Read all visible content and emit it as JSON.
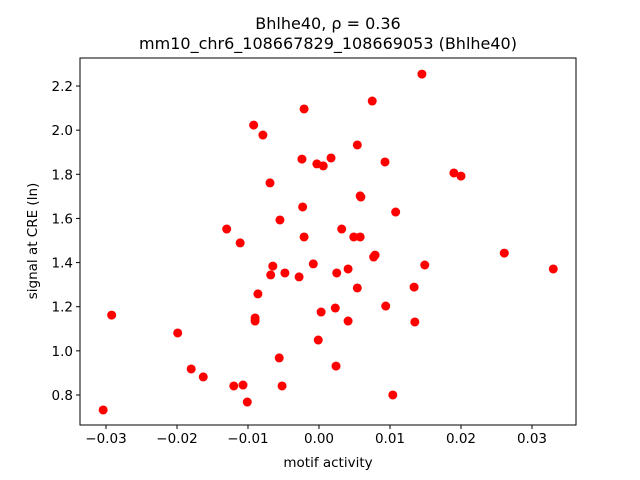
{
  "chart_data": {
    "type": "scatter",
    "title": "Bhlhe40, ρ = 0.36",
    "subtitle": "mm10_chr6_108667829_108669053 (Bhlhe40)",
    "x_label": "motif activity",
    "y_label": "signal at CRE (ln)",
    "color": "#ff0000",
    "x": [
      -0.0304,
      -0.0292,
      -0.0199,
      -0.018,
      -0.0163,
      -0.013,
      -0.012,
      -0.0111,
      -0.0107,
      -0.0101,
      -0.0092,
      -0.009,
      -0.009,
      -0.0086,
      -0.0079,
      -0.0069,
      -0.0065,
      -0.0068,
      -0.0056,
      -0.0055,
      -0.0052,
      -0.0048,
      -0.0028,
      -0.0024,
      -0.0023,
      -0.0021,
      -0.0021,
      -0.0008,
      -0.0003,
      -0.0001,
      0.0003,
      0.0006,
      0.0017,
      0.0023,
      0.0024,
      0.0025,
      0.0032,
      0.0041,
      0.0041,
      0.0049,
      0.0054,
      0.0054,
      0.0058,
      0.0059,
      0.0058,
      0.0075,
      0.0079,
      0.0077,
      0.0093,
      0.0094,
      0.0104,
      0.0108,
      0.0134,
      0.0135,
      0.0145,
      0.0149,
      0.019,
      0.02,
      0.0261,
      0.033
    ],
    "values": [
      0.732,
      1.162,
      1.081,
      0.918,
      0.882,
      1.552,
      0.841,
      1.489,
      0.845,
      0.768,
      2.023,
      1.135,
      1.149,
      1.258,
      1.978,
      1.761,
      1.384,
      1.344,
      0.968,
      1.593,
      0.841,
      1.353,
      1.335,
      1.869,
      1.652,
      2.096,
      1.516,
      1.394,
      1.847,
      1.049,
      1.176,
      1.838,
      1.874,
      1.194,
      0.931,
      1.353,
      1.552,
      1.371,
      1.135,
      1.516,
      1.933,
      1.285,
      1.516,
      1.697,
      1.702,
      2.132,
      1.434,
      1.425,
      1.856,
      1.203,
      0.8,
      1.629,
      1.289,
      1.131,
      2.254,
      1.389,
      1.806,
      1.792,
      1.443,
      1.371
    ],
    "xlim": [
      -0.03366,
      0.0362
    ],
    "ylim": [
      0.664,
      2.327
    ],
    "xticks": [
      {
        "value": -0.03,
        "label": "−0.03"
      },
      {
        "value": -0.02,
        "label": "−0.02"
      },
      {
        "value": -0.01,
        "label": "−0.01"
      },
      {
        "value": 0,
        "label": "0.00"
      },
      0.01,
      0.02,
      0.03
    ],
    "yticks": [
      0.8,
      {
        "value": 1.0,
        "label": "1.0"
      },
      1.2,
      1.4,
      1.6,
      1.8,
      {
        "value": 2.0,
        "label": "2.0"
      },
      2.2
    ],
    "grid": false
  }
}
